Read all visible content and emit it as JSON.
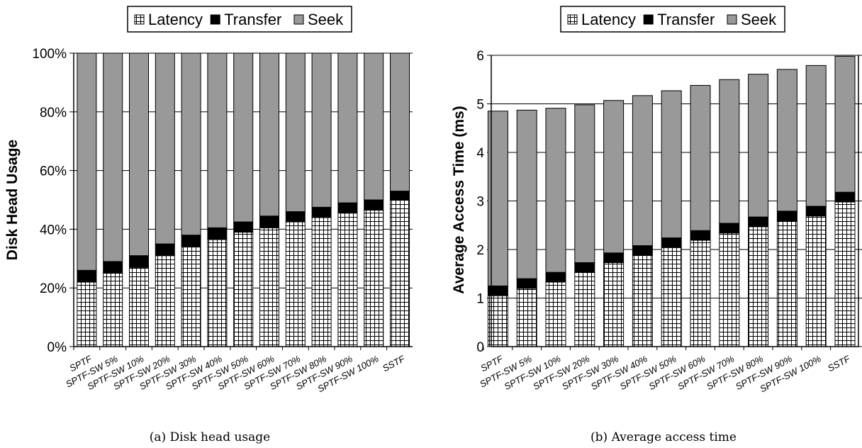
{
  "legend": {
    "items": [
      {
        "label": "Latency",
        "pattern": "grid"
      },
      {
        "label": "Transfer",
        "pattern": "black"
      },
      {
        "label": "Seek",
        "pattern": "gray"
      }
    ]
  },
  "colors": {
    "seek": "#999999",
    "transfer": "#000000",
    "latency_grid": "#000000",
    "gridline": "#000000"
  },
  "captions": {
    "a": "(a) Disk head usage",
    "b": "(b) Average access time"
  },
  "chart_data": [
    {
      "type": "bar",
      "stacked": true,
      "percent": true,
      "categories": [
        "SPTF",
        "SPTF-SW 5%",
        "SPTF-SW 10%",
        "SPTF-SW 20%",
        "SPTF-SW 30%",
        "SPTF-SW 40%",
        "SPTF-SW 50%",
        "SPTF-SW 60%",
        "SPTF-SW 70%",
        "SPTF-SW 80%",
        "SPTF-SW 90%",
        "SPTF-SW 100%",
        "SSTF"
      ],
      "series": [
        {
          "name": "Latency",
          "values": [
            22,
            25,
            27,
            31,
            34,
            36.5,
            39,
            40.5,
            42.5,
            44,
            45.5,
            46.5,
            50
          ]
        },
        {
          "name": "Transfer",
          "values": [
            4,
            4,
            4,
            4,
            4,
            4,
            3.5,
            4,
            3.5,
            3.5,
            3.5,
            3.5,
            3
          ]
        },
        {
          "name": "Seek",
          "values": [
            74,
            71,
            69,
            65,
            62,
            59.5,
            57.5,
            55.5,
            54,
            52.5,
            51,
            50,
            47
          ]
        }
      ],
      "ylabel": "Disk Head Usage",
      "ylim": [
        0,
        100
      ],
      "yticks": [
        "0%",
        "20%",
        "40%",
        "60%",
        "80%",
        "100%"
      ],
      "grid": true,
      "legend_position": "top-center"
    },
    {
      "type": "bar",
      "stacked": true,
      "percent": false,
      "categories": [
        "SPTF",
        "SPTF-SW 5%",
        "SPTF-SW 10%",
        "SPTF-SW 20%",
        "SPTF-SW 30%",
        "SPTF-SW 40%",
        "SPTF-SW 50%",
        "SPTF-SW 60%",
        "SPTF-SW 70%",
        "SPTF-SW 80%",
        "SPTF-SW 90%",
        "SPTF-SW 100%",
        "SSTF"
      ],
      "series": [
        {
          "name": "Latency",
          "values": [
            1.05,
            1.2,
            1.33,
            1.53,
            1.73,
            1.88,
            2.04,
            2.19,
            2.34,
            2.47,
            2.59,
            2.69,
            2.98
          ]
        },
        {
          "name": "Transfer",
          "values": [
            0.2,
            0.2,
            0.2,
            0.2,
            0.2,
            0.2,
            0.2,
            0.2,
            0.2,
            0.2,
            0.2,
            0.2,
            0.2
          ]
        },
        {
          "name": "Seek",
          "values": [
            3.6,
            3.47,
            3.38,
            3.25,
            3.14,
            3.09,
            3.03,
            2.99,
            2.96,
            2.94,
            2.92,
            2.9,
            2.8
          ]
        }
      ],
      "ylabel": "Average Access Time (ms)",
      "ylim": [
        0,
        6
      ],
      "yticks": [
        "0",
        "1",
        "2",
        "3",
        "4",
        "5",
        "6"
      ],
      "grid": true,
      "legend_position": "top-center"
    }
  ]
}
